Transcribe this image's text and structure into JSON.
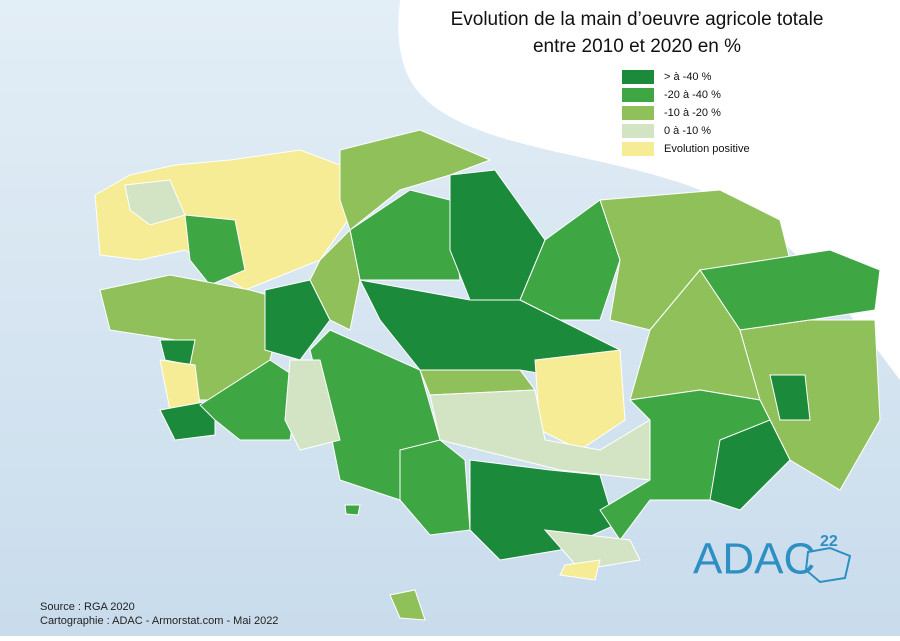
{
  "title": [
    "Evolution de la main d’oeuvre agricole totale",
    "entre 2010 et 2020 en %"
  ],
  "legend": [
    {
      "label": "> à -40 %",
      "color": "#1b8a3a"
    },
    {
      "label": "-20 à -40 %",
      "color": "#3ea744"
    },
    {
      "label": "-10 à -20 %",
      "color": "#8fc05a"
    },
    {
      "label": "0 à -10 %",
      "color": "#d3e4c4"
    },
    {
      "label": "Evolution positive",
      "color": "#f6ec96"
    }
  ],
  "source": [
    "Source : RGA 2020",
    "Cartographie : ADAC - Armorstat.com - Mai 2022"
  ],
  "logo": {
    "text": "ADAC",
    "number": "22"
  }
}
